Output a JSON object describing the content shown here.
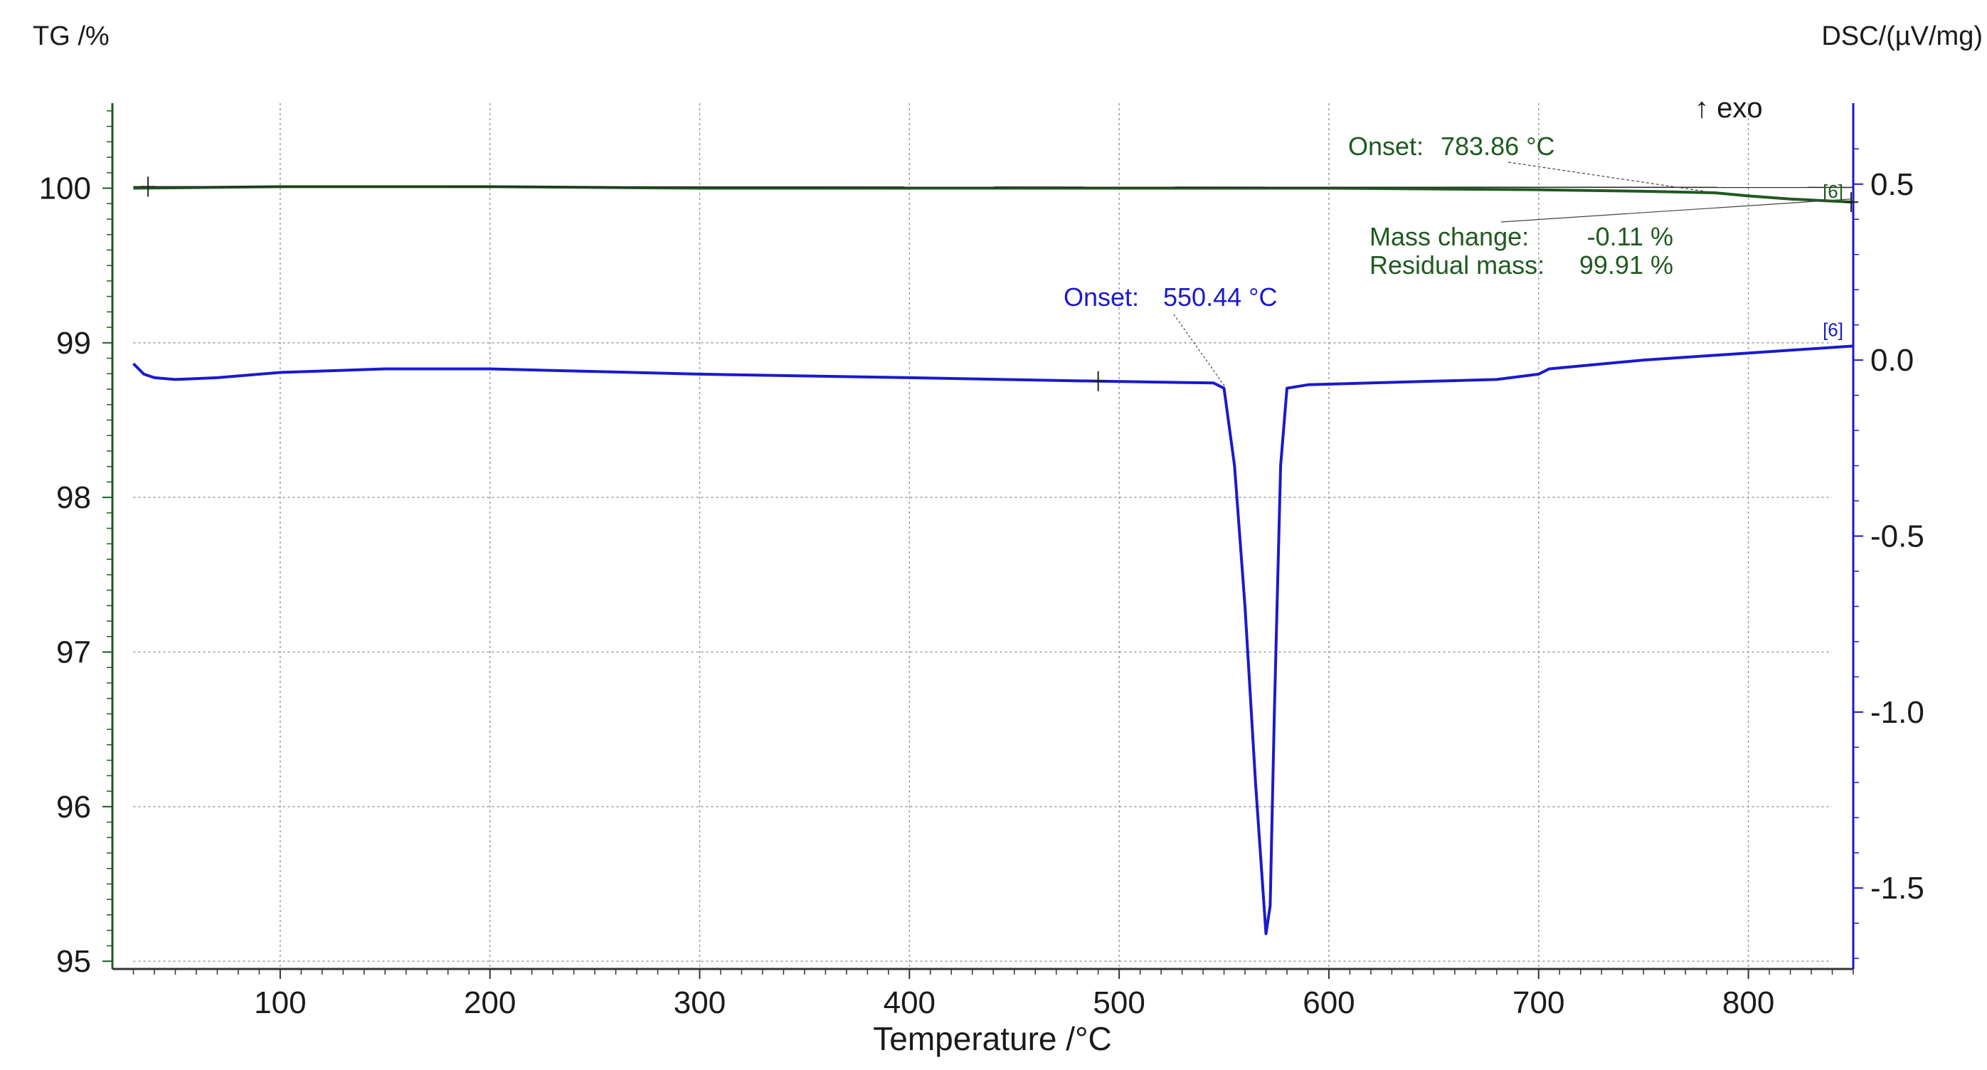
{
  "chart_data": {
    "type": "line",
    "xlabel": "Temperature /°C",
    "ylabel_left": "TG /%",
    "ylabel_right": "DSC/(µV/mg)",
    "xlim": [
      20,
      850
    ],
    "ylim_left": [
      94.95,
      100.55
    ],
    "ylim_right": [
      -1.73,
      0.73
    ],
    "x_ticks": [
      100,
      200,
      300,
      400,
      500,
      600,
      700,
      800
    ],
    "y_ticks_left": [
      95,
      96,
      97,
      98,
      99,
      100
    ],
    "y_ticks_right": [
      -1.5,
      -1.0,
      -0.5,
      0.0,
      0.5
    ],
    "y_tick_labels_right": [
      "-1.5",
      "-1.0",
      "-0.5",
      "0.0",
      "0.5"
    ],
    "grid": true,
    "exo_label": "↑ exo",
    "colors": {
      "tg": "#1f5a1f",
      "dsc": "#1a1acc",
      "axis": "#333333",
      "grid": "#9a9a9a"
    },
    "series": [
      {
        "axis": "left",
        "color": "#1f5a1f",
        "marker_label": "[6]",
        "points": [
          [
            30,
            100.0
          ],
          [
            100,
            100.01
          ],
          [
            200,
            100.01
          ],
          [
            300,
            100.0
          ],
          [
            400,
            100.0
          ],
          [
            500,
            100.0
          ],
          [
            600,
            100.0
          ],
          [
            700,
            99.99
          ],
          [
            750,
            99.98
          ],
          [
            784,
            99.97
          ],
          [
            800,
            99.95
          ],
          [
            820,
            99.93
          ],
          [
            850,
            99.91
          ]
        ]
      },
      {
        "axis": "right",
        "color": "#1a1acc",
        "marker_label": "[6]",
        "points": [
          [
            30,
            -0.01
          ],
          [
            35,
            -0.04
          ],
          [
            40,
            -0.05
          ],
          [
            50,
            -0.055
          ],
          [
            70,
            -0.05
          ],
          [
            100,
            -0.035
          ],
          [
            150,
            -0.025
          ],
          [
            200,
            -0.025
          ],
          [
            300,
            -0.04
          ],
          [
            400,
            -0.05
          ],
          [
            490,
            -0.06
          ],
          [
            545,
            -0.065
          ],
          [
            550,
            -0.08
          ],
          [
            555,
            -0.3
          ],
          [
            560,
            -0.7
          ],
          [
            565,
            -1.2
          ],
          [
            570,
            -1.63
          ],
          [
            572,
            -1.55
          ],
          [
            574,
            -1.0
          ],
          [
            577,
            -0.3
          ],
          [
            580,
            -0.08
          ],
          [
            590,
            -0.07
          ],
          [
            650,
            -0.06
          ],
          [
            680,
            -0.055
          ],
          [
            700,
            -0.04
          ],
          [
            705,
            -0.025
          ],
          [
            750,
            -0.0
          ],
          [
            800,
            0.02
          ],
          [
            850,
            0.04
          ]
        ]
      }
    ],
    "annotations": [
      {
        "series": "tg",
        "label": "Onset:",
        "value": "783.86 °C"
      },
      {
        "series": "tg",
        "label": "Mass change:",
        "value": "-0.11 %"
      },
      {
        "series": "tg",
        "label": "Residual mass:",
        "value": "99.91 %"
      },
      {
        "series": "dsc",
        "label": "Onset:",
        "value": "550.44 °C"
      }
    ]
  }
}
